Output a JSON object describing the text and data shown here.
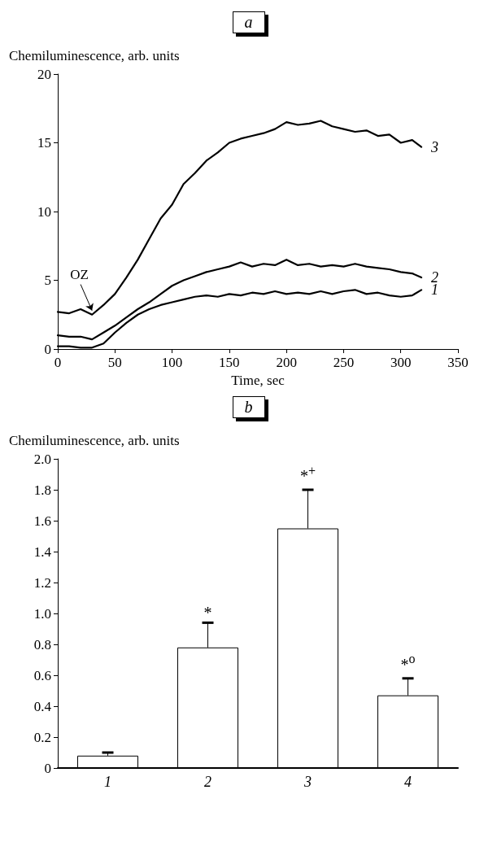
{
  "chart_data": [
    {
      "type": "line",
      "title": "a",
      "ylabel": "Chemiluminescence, arb. units",
      "xlabel": "Time, sec",
      "x": [
        0,
        10,
        20,
        30,
        40,
        50,
        60,
        70,
        80,
        90,
        100,
        110,
        120,
        130,
        140,
        150,
        160,
        170,
        180,
        190,
        200,
        210,
        220,
        230,
        240,
        250,
        260,
        270,
        280,
        290,
        300,
        310,
        318
      ],
      "series": [
        {
          "name": "1",
          "color": "#000000",
          "values": [
            0.2,
            0.2,
            0.1,
            0.1,
            0.4,
            1.2,
            1.9,
            2.5,
            2.9,
            3.2,
            3.4,
            3.6,
            3.8,
            3.9,
            3.8,
            4.0,
            3.9,
            4.1,
            4.0,
            4.2,
            4.0,
            4.1,
            4.0,
            4.2,
            4.0,
            4.2,
            4.3,
            4.0,
            4.1,
            3.9,
            3.8,
            3.9,
            4.3
          ]
        },
        {
          "name": "2",
          "color": "#000000",
          "values": [
            1.0,
            0.9,
            0.9,
            0.7,
            1.2,
            1.7,
            2.3,
            2.9,
            3.4,
            4.0,
            4.6,
            5.0,
            5.3,
            5.6,
            5.8,
            6.0,
            6.3,
            6.0,
            6.2,
            6.1,
            6.5,
            6.1,
            6.2,
            6.0,
            6.1,
            6.0,
            6.2,
            6.0,
            5.9,
            5.8,
            5.6,
            5.5,
            5.2
          ]
        },
        {
          "name": "3",
          "color": "#000000",
          "values": [
            2.7,
            2.6,
            2.9,
            2.5,
            3.2,
            4.0,
            5.2,
            6.5,
            8.0,
            9.5,
            10.5,
            12.0,
            12.8,
            13.7,
            14.3,
            15.0,
            15.3,
            15.5,
            15.7,
            16.0,
            16.5,
            16.3,
            16.4,
            16.6,
            16.2,
            16.0,
            15.8,
            15.9,
            15.5,
            15.6,
            15.0,
            15.2,
            14.7
          ]
        }
      ],
      "annotations": [
        {
          "text": "OZ",
          "x": 30,
          "y": 2.5
        }
      ],
      "xlim": [
        0,
        350
      ],
      "xticks": [
        0,
        50,
        100,
        150,
        200,
        250,
        300,
        350
      ],
      "ylim": [
        0,
        20
      ],
      "yticks": [
        0,
        5,
        10,
        15,
        20
      ],
      "grid": false,
      "legend": false,
      "marker": "none",
      "line_style": "solid"
    },
    {
      "type": "bar",
      "title": "b",
      "ylabel": "Chemiluminescence, arb. units",
      "categories": [
        "1",
        "2",
        "3",
        "4"
      ],
      "values": [
        0.08,
        0.78,
        1.55,
        0.47
      ],
      "errors": [
        [
          0.08,
          0.1
        ],
        [
          0.78,
          0.94
        ],
        [
          1.55,
          1.8
        ],
        [
          0.47,
          0.58
        ]
      ],
      "color": "#ffffff",
      "annotations": [
        {
          "text": "*",
          "x": "2",
          "y": 0.94
        },
        {
          "text": "*$^{+}$",
          "x": "3",
          "y": 1.8
        },
        {
          "text": "*$^{o}$",
          "x": "4",
          "y": 0.58
        }
      ],
      "ylim": [
        0,
        2
      ],
      "yticks": [
        0,
        {
          "value": 0.2,
          "label": "0.2"
        },
        {
          "value": 0.4,
          "label": "0.4"
        },
        {
          "value": 0.6,
          "label": "0.6"
        },
        {
          "value": 0.8,
          "label": "0.8"
        },
        {
          "value": 1,
          "label": "1.0"
        },
        {
          "value": 1.2,
          "label": "1.2"
        },
        {
          "value": 1.4,
          "label": "1.4"
        },
        {
          "value": 1.6,
          "label": "1.6"
        },
        {
          "value": 1.8,
          "label": "1.8"
        },
        {
          "value": 2,
          "label": "2.0"
        }
      ],
      "grid": false,
      "legend": false
    }
  ]
}
